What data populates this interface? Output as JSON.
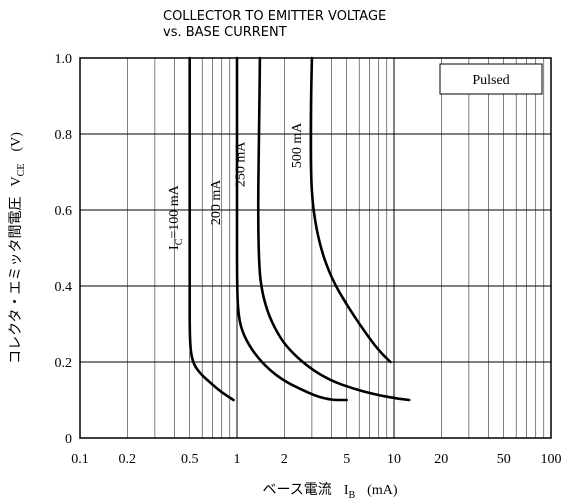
{
  "chart_data": {
    "type": "line",
    "title": "COLLECTOR TO EMITTER VOLTAGE",
    "subtitle": "vs. BASE CURRENT",
    "xlabel": {
      "text": "ベース電流",
      "symbol": "I",
      "subscript": "B",
      "unit": "(mA)"
    },
    "ylabel": {
      "text": "コレクタ・エミッタ間電圧",
      "symbol": "V",
      "subscript": "CE",
      "unit": "(V)"
    },
    "x_scale": "log",
    "xlim": [
      0.1,
      100
    ],
    "ylim": [
      0,
      1.0
    ],
    "x_ticks": [
      {
        "value": 0.1,
        "label": "0.1"
      },
      {
        "value": 0.2,
        "label": "0.2"
      },
      {
        "value": 0.5,
        "label": "0.5"
      },
      {
        "value": 1,
        "label": "1"
      },
      {
        "value": 2,
        "label": "2"
      },
      {
        "value": 5,
        "label": "5"
      },
      {
        "value": 10,
        "label": "10"
      },
      {
        "value": 20,
        "label": "20"
      },
      {
        "value": 50,
        "label": "50"
      },
      {
        "value": 100,
        "label": "100"
      }
    ],
    "y_ticks": [
      {
        "value": 0,
        "label": "0"
      },
      {
        "value": 0.2,
        "label": "0.2"
      },
      {
        "value": 0.4,
        "label": "0.4"
      },
      {
        "value": 0.6,
        "label": "0.6"
      },
      {
        "value": 0.8,
        "label": "0.8"
      },
      {
        "value": 1.0,
        "label": "1.0"
      }
    ],
    "grid": true,
    "annotation": {
      "text": "Pulsed",
      "placement": "top-right"
    },
    "series": [
      {
        "name": "IC=100 mA",
        "label_main": "I",
        "label_sub": "C",
        "label_rest": "=100 mA",
        "x": [
          0.5,
          0.5,
          0.5,
          0.5,
          0.52,
          0.58,
          0.7,
          0.8,
          0.95
        ],
        "y": [
          1.0,
          0.6,
          0.4,
          0.25,
          0.2,
          0.17,
          0.14,
          0.12,
          0.1
        ]
      },
      {
        "name": "200 mA",
        "label_main": "200 mA",
        "x": [
          1.0,
          1.0,
          1.0,
          1.02,
          1.1,
          1.3,
          1.6,
          2.0,
          2.5,
          3.2,
          4.0,
          5.0
        ],
        "y": [
          1.0,
          0.6,
          0.4,
          0.32,
          0.27,
          0.22,
          0.18,
          0.15,
          0.13,
          0.11,
          0.1,
          0.1
        ]
      },
      {
        "name": "250 mA",
        "label_main": "250 mA",
        "x": [
          1.4,
          1.38,
          1.36,
          1.38,
          1.45,
          1.6,
          1.9,
          2.3,
          3.0,
          4.0,
          5.5,
          7.5,
          10.0,
          12.5
        ],
        "y": [
          1.0,
          0.8,
          0.6,
          0.45,
          0.38,
          0.32,
          0.26,
          0.22,
          0.18,
          0.15,
          0.13,
          0.115,
          0.105,
          0.1
        ]
      },
      {
        "name": "500 mA",
        "label_main": "500 mA",
        "x": [
          3.0,
          2.95,
          2.95,
          3.05,
          3.4,
          4.0,
          5.0,
          6.5,
          8.0,
          9.5
        ],
        "y": [
          1.0,
          0.85,
          0.7,
          0.6,
          0.5,
          0.42,
          0.35,
          0.28,
          0.23,
          0.2
        ]
      }
    ]
  }
}
